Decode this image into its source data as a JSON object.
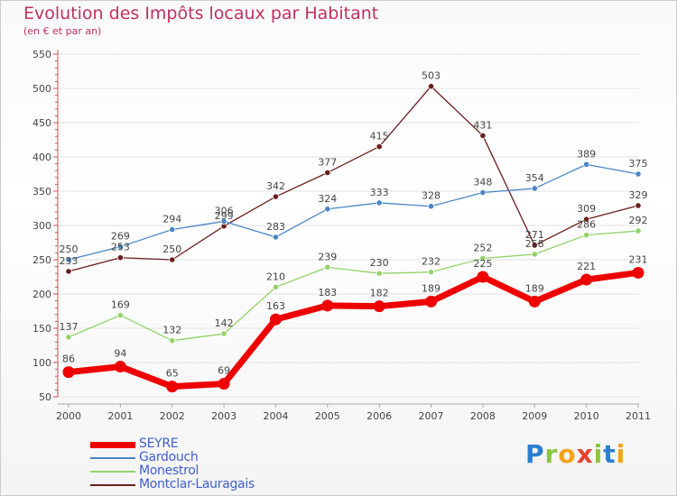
{
  "title": "Evolution des Impôts locaux par Habitant",
  "subtitle": "(en € et par an)",
  "logo": {
    "text": "Proxiti",
    "letters": [
      {
        "ch": "P",
        "color": "#2b7fd0"
      },
      {
        "ch": "r",
        "color": "#8cc63e"
      },
      {
        "ch": "o",
        "color": "#f2a31b"
      },
      {
        "ch": "x",
        "color": "#e8412c"
      },
      {
        "ch": "i",
        "color": "#8cc63e"
      },
      {
        "ch": "t",
        "color": "#2b7fd0"
      },
      {
        "ch": "i",
        "color": "#f2a31b"
      }
    ]
  },
  "chart_data": {
    "type": "line",
    "title": "Evolution des Impôts locaux par Habitant",
    "subtitle": "(en € et par an)",
    "xlabel": "",
    "ylabel": "",
    "categories": [
      "2000",
      "2001",
      "2002",
      "2003",
      "2004",
      "2005",
      "2006",
      "2007",
      "2008",
      "2009",
      "2010",
      "2011"
    ],
    "ylim": [
      50,
      550
    ],
    "yticks": [
      50,
      100,
      150,
      200,
      250,
      300,
      350,
      400,
      450,
      500,
      550
    ],
    "grid": "horizontal",
    "legend_position": "bottom-left",
    "series": [
      {
        "name": "Montclar-Lauragais",
        "color": "#6b1d1d",
        "emphasis": false,
        "values": [
          233,
          253,
          250,
          299,
          342,
          377,
          415,
          503,
          431,
          271,
          309,
          329
        ]
      },
      {
        "name": "Gardouch",
        "color": "#4a86c5",
        "emphasis": false,
        "values": [
          250,
          269,
          294,
          306,
          283,
          324,
          333,
          328,
          348,
          354,
          389,
          375
        ]
      },
      {
        "name": "Monestrol",
        "color": "#92d36a",
        "emphasis": false,
        "values": [
          137,
          169,
          132,
          142,
          210,
          239,
          230,
          232,
          252,
          258,
          286,
          292
        ]
      },
      {
        "name": "SEYRE",
        "color": "#ee0000",
        "emphasis": true,
        "values": [
          86,
          94,
          65,
          69,
          163,
          183,
          182,
          189,
          225,
          189,
          221,
          231
        ]
      }
    ],
    "legend_order": [
      "SEYRE",
      "Gardouch",
      "Monestrol",
      "Montclar-Lauragais"
    ]
  }
}
